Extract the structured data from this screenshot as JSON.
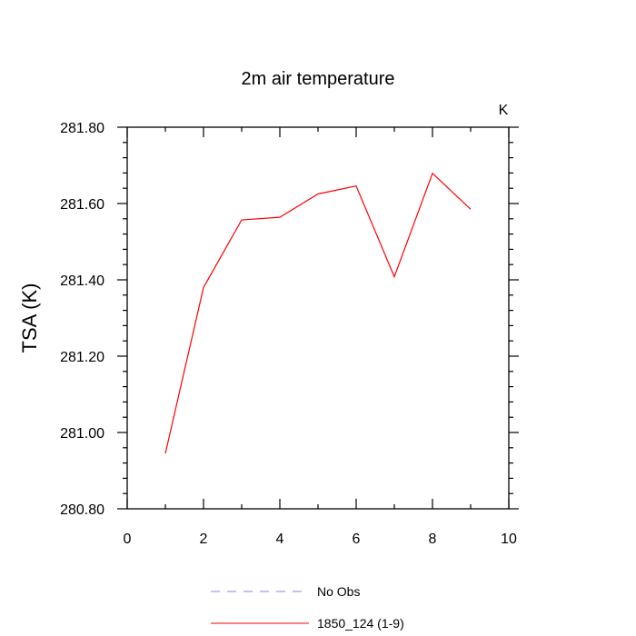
{
  "chart_data": {
    "type": "line",
    "title": "2m air temperature",
    "units_label": "K",
    "ylabel": "TSA  (K)",
    "xlabel": "",
    "xlim": [
      0,
      10
    ],
    "ylim": [
      280.8,
      281.8
    ],
    "x_ticks": [
      "0",
      "2",
      "4",
      "6",
      "8",
      "10"
    ],
    "y_ticks": [
      "280.80",
      "281.00",
      "281.20",
      "281.40",
      "281.60",
      "281.80"
    ],
    "x_tick_values": [
      0,
      2,
      4,
      6,
      8,
      10
    ],
    "y_tick_values": [
      280.8,
      281.0,
      281.2,
      281.4,
      281.6,
      281.8
    ],
    "x_minor_step": 1,
    "y_minor_step": 0.04,
    "grid": false,
    "legend_position": "bottom",
    "series": [
      {
        "name": "1850_124 (1-9)",
        "color": "#ff0000",
        "style": "solid",
        "x": [
          1,
          2,
          3,
          4,
          5,
          6,
          7,
          8,
          9
        ],
        "y": [
          280.945,
          281.38,
          281.557,
          281.564,
          281.625,
          281.646,
          281.408,
          281.679,
          281.585
        ]
      }
    ],
    "legend": [
      {
        "label": "No Obs",
        "color": "#8080ff",
        "style": "dashed"
      },
      {
        "label": "1850_124 (1-9)",
        "color": "#ff0000",
        "style": "solid"
      }
    ]
  }
}
